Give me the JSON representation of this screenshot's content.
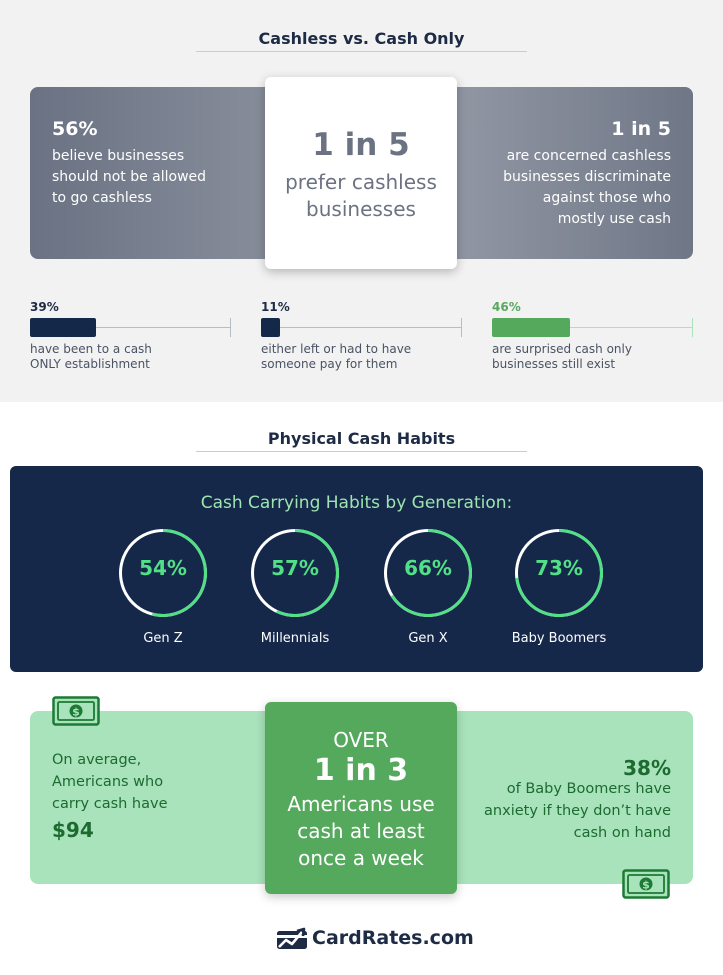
{
  "section1": {
    "title": "Cashless vs. Cash Only",
    "left": {
      "big": "56%",
      "lines": [
        "believe businesses",
        "should not be allowed",
        "to go cashless"
      ]
    },
    "center": {
      "big": "1 in 5",
      "lines": [
        "prefer cashless",
        "businesses"
      ]
    },
    "right": {
      "big": "1 in 5",
      "lines": [
        "are concerned cashless",
        "businesses discriminate",
        "against those who",
        "mostly use cash"
      ]
    },
    "stats": [
      {
        "pct": "39%",
        "value": 0.39,
        "color": "#14284a",
        "lines": [
          "have been to a cash",
          "ONLY establishment"
        ]
      },
      {
        "pct": "11%",
        "value": 0.11,
        "color": "#14284a",
        "lines": [
          "either left or had to have",
          "someone pay for them"
        ]
      },
      {
        "pct": "46%",
        "value": 0.46,
        "color": "#55a95d",
        "lines": [
          "are surprised cash only",
          "businesses still exist"
        ]
      }
    ]
  },
  "section2": {
    "title": "Physical Cash Habits",
    "panel_title": "Cash Carrying Habits by Generation:",
    "generations": [
      {
        "pct": "54%",
        "value": 0.54,
        "label": "Gen Z"
      },
      {
        "pct": "57%",
        "value": 0.57,
        "label": "Millennials"
      },
      {
        "pct": "66%",
        "value": 0.66,
        "label": "Gen X"
      },
      {
        "pct": "73%",
        "value": 0.73,
        "label": "Baby Boomers"
      }
    ],
    "left": {
      "lines": [
        "On average,",
        "Americans who",
        "carry cash have"
      ],
      "big": "$94"
    },
    "center": {
      "over": "OVER",
      "big": "1 in 3",
      "lines": [
        "Americans use",
        "cash at least",
        "once a week"
      ]
    },
    "right": {
      "big": "38%",
      "lines": [
        "of Baby Boomers have",
        "anxiety if they don’t have",
        "cash on hand"
      ]
    }
  },
  "footer": {
    "logo_text": "CardRates.com"
  },
  "colors": {
    "navy": "#15284a",
    "accent_green": "#52e086",
    "bar_green": "#55a95d",
    "panel_green": "#a9e3bb"
  },
  "icons": [
    "cash-bill-icon",
    "cardrates-chart-logo-icon"
  ]
}
